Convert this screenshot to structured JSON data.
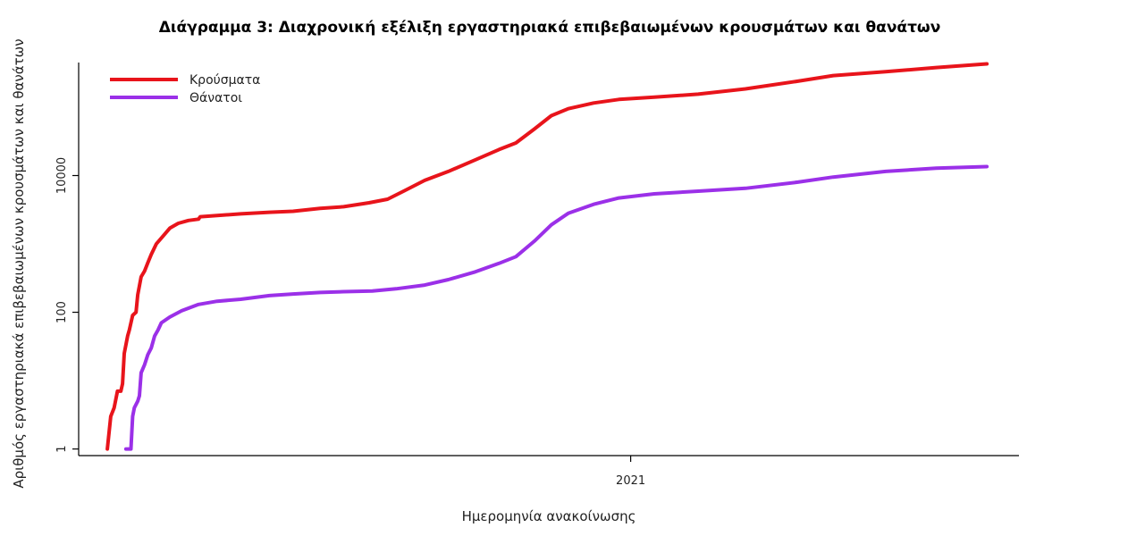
{
  "chart_data": {
    "type": "line",
    "title": "Διάγραμμα 3: Διαχρονική εξέλιξη εργαστηριακά επιβεβαιωμένων κρουσμάτων και θανάτων",
    "xlabel": "Ημερομηνία ανακοίνωσης",
    "ylabel": "Αριθμός εργαστηριακά επιβεβαιωμένων κρουσμάτων και θανάτων",
    "y_scale": "log",
    "ylim": [
      0.8,
      450000
    ],
    "xlim": [
      "2020-02-09",
      "2021-08-19"
    ],
    "x_ticks": [
      {
        "date": "2021-01-01",
        "label": "2021"
      }
    ],
    "y_ticks": [
      {
        "value": 1,
        "label": "1"
      },
      {
        "value": 100,
        "label": "100"
      },
      {
        "value": 10000,
        "label": "10000"
      }
    ],
    "legend_position": "top-left",
    "grid": false,
    "series": [
      {
        "name": "Κρούσματα",
        "color": "#e8141b",
        "points": [
          [
            "2020-02-26",
            1
          ],
          [
            "2020-02-28",
            3
          ],
          [
            "2020-03-01",
            4
          ],
          [
            "2020-03-03",
            7
          ],
          [
            "2020-03-05",
            7
          ],
          [
            "2020-03-06",
            9
          ],
          [
            "2020-03-07",
            25
          ],
          [
            "2020-03-09",
            45
          ],
          [
            "2020-03-10",
            55
          ],
          [
            "2020-03-11",
            70
          ],
          [
            "2020-03-12",
            90
          ],
          [
            "2020-03-14",
            100
          ],
          [
            "2020-03-15",
            180
          ],
          [
            "2020-03-17",
            330
          ],
          [
            "2020-03-19",
            400
          ],
          [
            "2020-03-21",
            530
          ],
          [
            "2020-03-23",
            700
          ],
          [
            "2020-03-26",
            1000
          ],
          [
            "2020-03-30",
            1300
          ],
          [
            "2020-04-03",
            1700
          ],
          [
            "2020-04-08",
            2000
          ],
          [
            "2020-04-14",
            2200
          ],
          [
            "2020-04-20",
            2300
          ],
          [
            "2020-04-21",
            2500
          ],
          [
            "2020-05-01",
            2600
          ],
          [
            "2020-05-15",
            2750
          ],
          [
            "2020-06-01",
            2900
          ],
          [
            "2020-06-15",
            3000
          ],
          [
            "2020-07-01",
            3300
          ],
          [
            "2020-07-15",
            3500
          ],
          [
            "2020-07-30",
            4000
          ],
          [
            "2020-08-10",
            4500
          ],
          [
            "2020-08-20",
            6000
          ],
          [
            "2020-09-01",
            8500
          ],
          [
            "2020-09-15",
            11500
          ],
          [
            "2020-10-01",
            17000
          ],
          [
            "2020-10-15",
            24000
          ],
          [
            "2020-10-25",
            30000
          ],
          [
            "2020-11-05",
            48000
          ],
          [
            "2020-11-15",
            75000
          ],
          [
            "2020-11-25",
            95000
          ],
          [
            "2020-12-10",
            115000
          ],
          [
            "2020-12-25",
            130000
          ],
          [
            "2021-01-15",
            140000
          ],
          [
            "2021-02-10",
            155000
          ],
          [
            "2021-03-10",
            185000
          ],
          [
            "2021-04-10",
            240000
          ],
          [
            "2021-05-01",
            290000
          ],
          [
            "2021-06-01",
            330000
          ],
          [
            "2021-07-01",
            380000
          ],
          [
            "2021-07-31",
            430000
          ]
        ]
      },
      {
        "name": "Θάνατοι",
        "color": "#9b30e8",
        "points": [
          [
            "2020-03-08",
            1
          ],
          [
            "2020-03-11",
            1
          ],
          [
            "2020-03-12",
            3
          ],
          [
            "2020-03-13",
            4
          ],
          [
            "2020-03-15",
            5
          ],
          [
            "2020-03-16",
            6
          ],
          [
            "2020-03-17",
            13
          ],
          [
            "2020-03-19",
            17
          ],
          [
            "2020-03-21",
            24
          ],
          [
            "2020-03-23",
            30
          ],
          [
            "2020-03-25",
            45
          ],
          [
            "2020-03-27",
            55
          ],
          [
            "2020-03-29",
            70
          ],
          [
            "2020-04-03",
            85
          ],
          [
            "2020-04-10",
            105
          ],
          [
            "2020-04-20",
            130
          ],
          [
            "2020-05-01",
            145
          ],
          [
            "2020-05-15",
            155
          ],
          [
            "2020-06-01",
            175
          ],
          [
            "2020-06-15",
            185
          ],
          [
            "2020-07-01",
            195
          ],
          [
            "2020-07-15",
            200
          ],
          [
            "2020-08-01",
            205
          ],
          [
            "2020-08-15",
            220
          ],
          [
            "2020-09-01",
            250
          ],
          [
            "2020-09-15",
            300
          ],
          [
            "2020-10-01",
            390
          ],
          [
            "2020-10-15",
            520
          ],
          [
            "2020-10-25",
            650
          ],
          [
            "2020-11-05",
            1100
          ],
          [
            "2020-11-15",
            1900
          ],
          [
            "2020-11-25",
            2800
          ],
          [
            "2020-12-10",
            3800
          ],
          [
            "2020-12-25",
            4700
          ],
          [
            "2021-01-15",
            5400
          ],
          [
            "2021-02-10",
            5900
          ],
          [
            "2021-03-10",
            6500
          ],
          [
            "2021-04-10",
            8000
          ],
          [
            "2021-05-01",
            9500
          ],
          [
            "2021-06-01",
            11500
          ],
          [
            "2021-07-01",
            12800
          ],
          [
            "2021-07-31",
            13500
          ]
        ]
      }
    ]
  }
}
